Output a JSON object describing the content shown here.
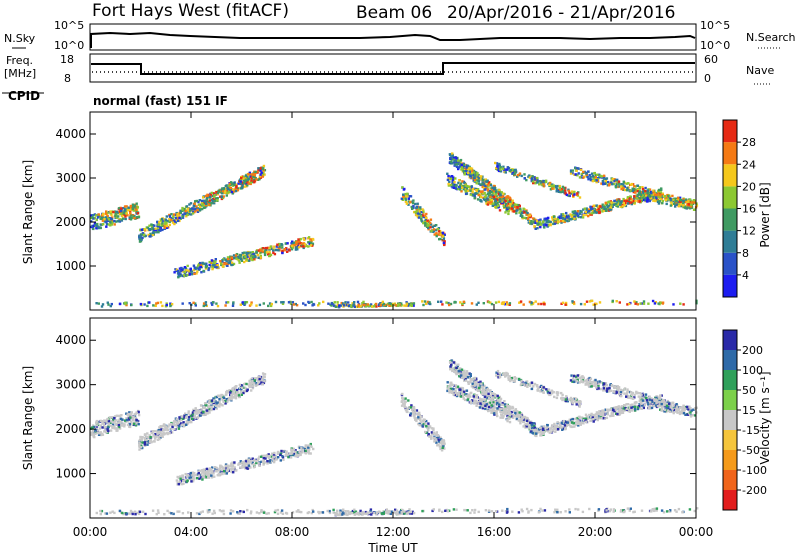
{
  "header": {
    "radar": "Fort Hays West (fitACF)",
    "beam": "Beam 06",
    "dates": "20/Apr/2016 - 21/Apr/2016"
  },
  "strip": {
    "nsky_label": "N.Sky",
    "nsky_ticks": [
      "10^5",
      "10^0"
    ],
    "nsearch_label": "N.Search",
    "nsearch_ticks": [
      "10^5",
      "10^0"
    ],
    "freq_label": "Freq.",
    "freq_unit": "[MHz]",
    "freq_ticks": [
      "18",
      "8"
    ],
    "nave_label": "Nave",
    "nave_ticks": [
      "60",
      "0"
    ],
    "cpid_label": "CPID",
    "cpid_value": "normal (fast) 151 IF"
  },
  "chart_data": [
    {
      "type": "heatmap",
      "name": "power",
      "ylabel": "Slant Range [km]",
      "yticks": [
        "1000",
        "2000",
        "3000",
        "4000"
      ],
      "ylim": [
        0,
        4500
      ],
      "colorbar_label": "Power [dB]",
      "colorbar_ticks": [
        "4",
        "8",
        "12",
        "16",
        "20",
        "24",
        "28"
      ],
      "colorbar_colors": [
        "#1d1df0",
        "#2a52c8",
        "#2f7d96",
        "#3f9a62",
        "#8cc832",
        "#f5c81c",
        "#f57a14",
        "#e62a14"
      ]
    },
    {
      "type": "heatmap",
      "name": "velocity",
      "ylabel": "Slant Range [km]",
      "yticks": [
        "1000",
        "2000",
        "3000",
        "4000"
      ],
      "ylim": [
        0,
        4500
      ],
      "colorbar_label": "Velocity [m s⁻¹]",
      "colorbar_ticks": [
        "-200",
        "-100",
        "-50",
        "-15",
        "15",
        "50",
        "100",
        "200"
      ],
      "colorbar_colors": [
        "#e21d1d",
        "#f0641a",
        "#f59a1a",
        "#f5c53c",
        "#c8c8c8",
        "#7cd04a",
        "#2fa05a",
        "#2e6aa8",
        "#2a2aa8"
      ],
      "xlabel": "Time UT",
      "xticks": [
        "00:00",
        "04:00",
        "08:00",
        "12:00",
        "16:00",
        "20:00",
        "00:00"
      ]
    }
  ]
}
